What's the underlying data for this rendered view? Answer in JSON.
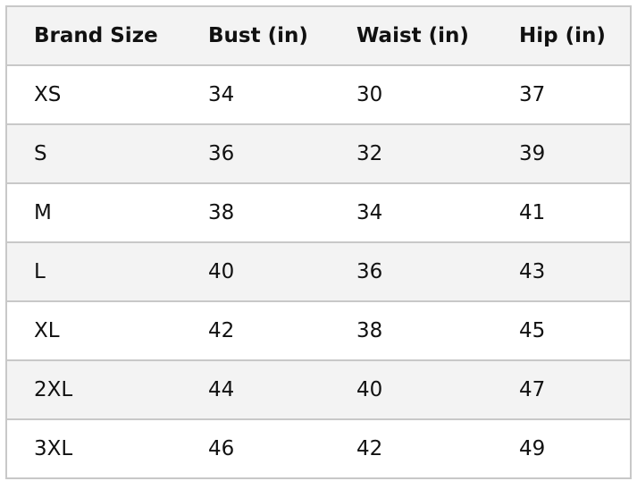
{
  "table": {
    "headers": [
      "Brand Size",
      "Bust (in)",
      "Waist (in)",
      "Hip (in)"
    ],
    "rows": [
      [
        "XS",
        "34",
        "30",
        "37"
      ],
      [
        "S",
        "36",
        "32",
        "39"
      ],
      [
        "M",
        "38",
        "34",
        "41"
      ],
      [
        "L",
        "40",
        "36",
        "43"
      ],
      [
        "XL",
        "42",
        "38",
        "45"
      ],
      [
        "2XL",
        "44",
        "40",
        "47"
      ],
      [
        "3XL",
        "46",
        "42",
        "49"
      ]
    ]
  }
}
